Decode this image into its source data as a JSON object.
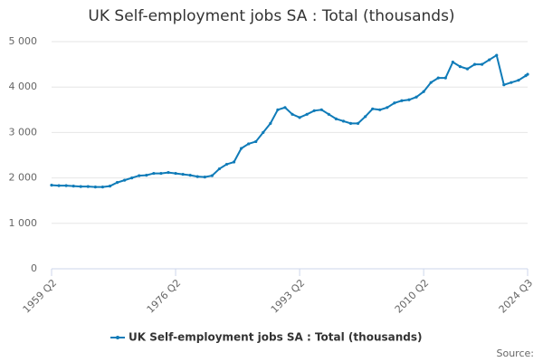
{
  "chart_data": {
    "type": "line",
    "title": "UK Self-employment jobs SA : Total (thousands)",
    "source": "Source:",
    "x": [
      1959.25,
      1960.25,
      1961.25,
      1962.25,
      1963.25,
      1964.25,
      1965.25,
      1966.25,
      1967.25,
      1968.25,
      1969.25,
      1970.25,
      1971.25,
      1972.25,
      1973.25,
      1974.25,
      1975.25,
      1976.25,
      1977.25,
      1978.25,
      1979.25,
      1980.25,
      1981.25,
      1982.25,
      1983.25,
      1984.25,
      1985.25,
      1986.25,
      1987.25,
      1988.25,
      1989.25,
      1990.25,
      1991.25,
      1992.25,
      1993.25,
      1994.25,
      1995.25,
      1996.25,
      1997.25,
      1998.25,
      1999.25,
      2000.25,
      2001.25,
      2002.25,
      2003.25,
      2004.25,
      2005.25,
      2006.25,
      2007.25,
      2008.25,
      2009.25,
      2010.25,
      2011.25,
      2012.25,
      2013.25,
      2014.25,
      2015.25,
      2016.25,
      2017.25,
      2018.25,
      2019.25,
      2020.25,
      2021.25,
      2022.25,
      2023.25,
      2024.25,
      2024.5
    ],
    "series": [
      {
        "name": "UK Self-employment jobs SA : Total (thousands)",
        "color": "#0f7bb8",
        "values": [
          1840,
          1830,
          1830,
          1820,
          1810,
          1810,
          1800,
          1800,
          1820,
          1900,
          1950,
          2000,
          2050,
          2060,
          2100,
          2100,
          2120,
          2100,
          2080,
          2060,
          2030,
          2020,
          2050,
          2200,
          2300,
          2350,
          2650,
          2750,
          2800,
          3000,
          3200,
          3500,
          3550,
          3400,
          3330,
          3400,
          3480,
          3500,
          3400,
          3300,
          3250,
          3200,
          3200,
          3350,
          3520,
          3500,
          3550,
          3650,
          3700,
          3720,
          3780,
          3900,
          4100,
          4200,
          4200,
          4550,
          4450,
          4400,
          4500,
          4500,
          4600,
          4700,
          4050,
          4100,
          4150,
          4250,
          4280
        ]
      }
    ],
    "xlim": [
      1959.25,
      2024.5
    ],
    "xticks": [
      {
        "value": 1959.25,
        "label": "1959 Q2"
      },
      {
        "value": 1976.25,
        "label": "1976 Q2"
      },
      {
        "value": 1993.25,
        "label": "1993 Q2"
      },
      {
        "value": 2010.25,
        "label": "2010 Q2"
      },
      {
        "value": 2024.5,
        "label": "2024 Q3"
      }
    ],
    "ylim": [
      0,
      5000
    ],
    "yticks": [
      0,
      {
        "value": 1000,
        "label": "1 000"
      },
      {
        "value": 2000,
        "label": "2 000"
      },
      {
        "value": 3000,
        "label": "3 000"
      },
      {
        "value": 4000,
        "label": "4 000"
      },
      {
        "value": 5000,
        "label": "5 000"
      }
    ],
    "grid": true,
    "legend": "bottom"
  }
}
